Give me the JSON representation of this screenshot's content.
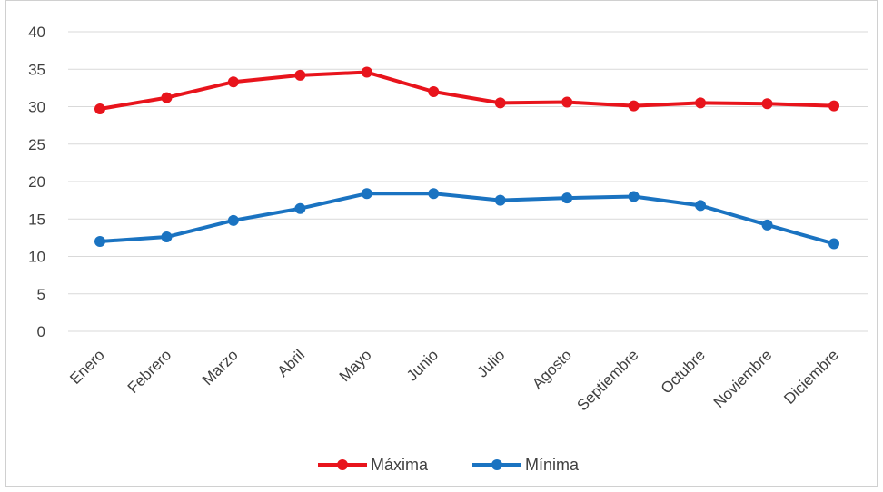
{
  "chart_data": {
    "type": "line",
    "categories": [
      "Enero",
      "Febrero",
      "Marzo",
      "Abril",
      "Mayo",
      "Junio",
      "Julio",
      "Agosto",
      "Septiembre",
      "Octubre",
      "Noviembre",
      "Diciembre"
    ],
    "series": [
      {
        "name": "Máxima",
        "color": "#e8141c",
        "values": [
          29.7,
          31.2,
          33.3,
          34.2,
          34.6,
          32.0,
          30.5,
          30.6,
          30.1,
          30.5,
          30.4,
          30.1
        ]
      },
      {
        "name": "Mínima",
        "color": "#1a73c1",
        "values": [
          12.0,
          12.6,
          14.8,
          16.4,
          18.4,
          18.4,
          17.5,
          17.8,
          18.0,
          16.8,
          14.2,
          11.7
        ]
      }
    ],
    "yticks": [
      "0",
      "5",
      "10",
      "15",
      "20",
      "25",
      "30",
      "35",
      "40"
    ],
    "ylim": [
      0,
      40
    ],
    "grid": true,
    "legend": "bottom"
  }
}
